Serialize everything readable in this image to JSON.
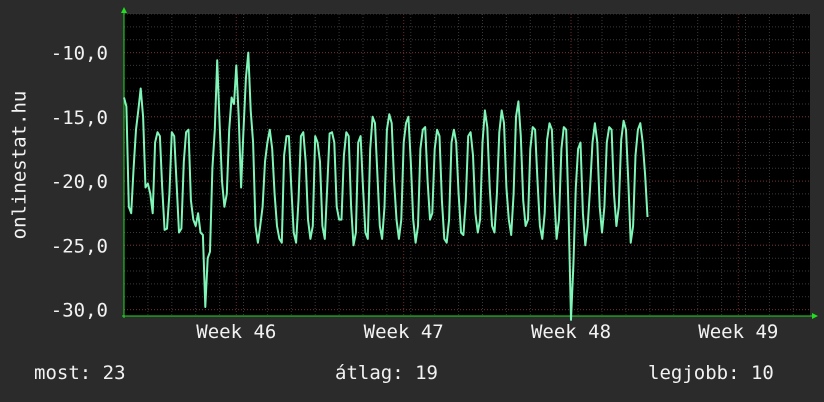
{
  "chart_data": {
    "type": "line",
    "ylabel": "onlinestat.hu",
    "ylim": [
      -30.5,
      -7.0
    ],
    "y_ticks": [
      {
        "value": -10.0,
        "label": "-10,0"
      },
      {
        "value": -15.0,
        "label": "-15,0"
      },
      {
        "value": -20.0,
        "label": "-20,0"
      },
      {
        "value": -25.0,
        "label": "-25,0"
      },
      {
        "value": -30.0,
        "label": "-30,0"
      }
    ],
    "xlim_days": [
      0,
      28.7
    ],
    "x_ticks": [
      {
        "day": 4.7,
        "label": "Week 46"
      },
      {
        "day": 11.7,
        "label": "Week 47"
      },
      {
        "day": 18.7,
        "label": "Week 48"
      },
      {
        "day": 25.7,
        "label": "Week 49"
      }
    ],
    "grid": true,
    "colors": {
      "line": "#7ff5b8",
      "background": "#000000",
      "grid_major": "#6e2a2a",
      "grid_minor": "#3a3a3a",
      "arrow": "#22dd22"
    },
    "series": [
      {
        "name": "",
        "step_days": 0.1,
        "values": [
          -13.5,
          -14.2,
          -22.0,
          -22.5,
          -19.0,
          -16.0,
          -14.5,
          -12.8,
          -15.0,
          -20.5,
          -20.2,
          -21.0,
          -22.5,
          -17.0,
          -16.2,
          -16.5,
          -20.5,
          -23.8,
          -23.7,
          -21.0,
          -16.2,
          -16.5,
          -20.2,
          -24.0,
          -23.7,
          -18.5,
          -16.2,
          -16.0,
          -21.5,
          -23.0,
          -23.5,
          -22.5,
          -24.0,
          -24.2,
          -29.8,
          -26.0,
          -25.5,
          -19.0,
          -16.0,
          -10.6,
          -15.5,
          -20.0,
          -22.0,
          -21.0,
          -16.0,
          -13.5,
          -14.0,
          -11.0,
          -15.0,
          -20.5,
          -16.0,
          -12.0,
          -10.0,
          -14.5,
          -17.0,
          -23.5,
          -24.8,
          -23.5,
          -22.0,
          -18.5,
          -17.0,
          -16.0,
          -17.5,
          -21.0,
          -23.5,
          -24.5,
          -24.8,
          -18.0,
          -16.5,
          -16.5,
          -20.5,
          -24.0,
          -24.8,
          -21.5,
          -16.5,
          -16.2,
          -18.5,
          -23.0,
          -24.5,
          -23.5,
          -16.5,
          -17.0,
          -18.5,
          -23.5,
          -24.5,
          -20.5,
          -16.3,
          -16.2,
          -17.0,
          -22.0,
          -23.0,
          -23.0,
          -18.0,
          -16.2,
          -16.5,
          -22.0,
          -25.0,
          -24.0,
          -17.0,
          -16.5,
          -20.5,
          -24.0,
          -24.5,
          -17.5,
          -15.0,
          -15.5,
          -19.5,
          -23.5,
          -24.5,
          -22.0,
          -16.0,
          -14.8,
          -15.5,
          -20.0,
          -23.0,
          -24.5,
          -23.0,
          -17.0,
          -15.5,
          -15.0,
          -18.5,
          -23.0,
          -24.8,
          -23.5,
          -17.5,
          -16.0,
          -15.8,
          -20.0,
          -23.0,
          -22.5,
          -17.5,
          -16.0,
          -16.5,
          -21.5,
          -24.5,
          -24.8,
          -23.0,
          -17.0,
          -16.0,
          -17.0,
          -21.0,
          -24.0,
          -24.2,
          -21.5,
          -16.5,
          -16.2,
          -18.0,
          -22.5,
          -24.0,
          -23.0,
          -17.0,
          -14.5,
          -15.8,
          -20.5,
          -23.5,
          -24.0,
          -21.0,
          -16.2,
          -14.5,
          -15.5,
          -20.5,
          -23.0,
          -24.2,
          -21.0,
          -15.0,
          -13.8,
          -16.5,
          -21.5,
          -23.5,
          -23.0,
          -17.5,
          -15.8,
          -16.0,
          -20.0,
          -23.5,
          -24.5,
          -22.5,
          -16.8,
          -15.5,
          -16.0,
          -21.0,
          -24.5,
          -23.0,
          -17.5,
          -15.8,
          -16.0,
          -22.5,
          -30.8,
          -26.5,
          -20.5,
          -17.5,
          -17.0,
          -22.5,
          -25.0,
          -23.5,
          -20.5,
          -17.0,
          -15.5,
          -17.0,
          -22.0,
          -24.0,
          -22.0,
          -17.0,
          -15.8,
          -16.0,
          -21.0,
          -23.5,
          -22.0,
          -16.8,
          -15.3,
          -16.0,
          -20.0,
          -24.8,
          -23.5,
          -18.0,
          -16.0,
          -15.5,
          -17.0,
          -19.5,
          -22.8
        ]
      }
    ]
  },
  "stats": {
    "now": "most: 23",
    "avg": "átlag: 19",
    "best": "legjobb: 10"
  }
}
